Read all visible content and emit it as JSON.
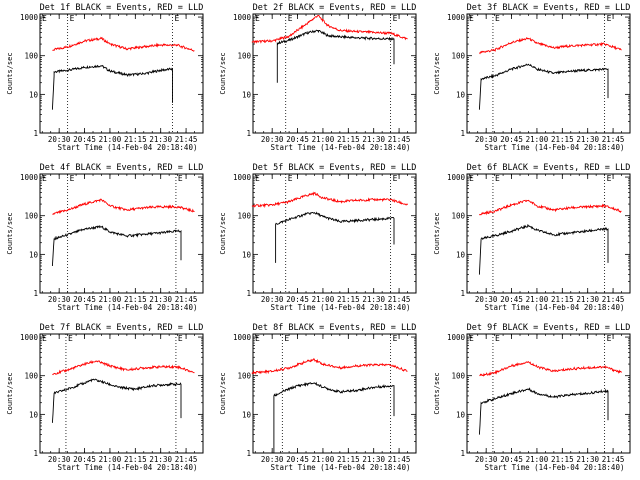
{
  "colors": {
    "events": "#000000",
    "lld": "#ff0000",
    "frame": "#000000",
    "background": "#ffffff"
  },
  "chart_data": [
    {
      "type": "line",
      "title": "Det 1f BLACK = Events, RED = LLD",
      "ylabel": "Counts/sec",
      "xlabel": "Start Time (14-Feb-04 20:18:40)",
      "yscale": "log",
      "ylim": [
        1,
        1200
      ],
      "yticks": [
        "1",
        "10",
        "100",
        "1000"
      ],
      "xticks": [
        "20:30",
        "20:45",
        "21:00",
        "21:15",
        "21:30",
        "21:45"
      ],
      "xlim": [
        "20:18:40",
        "21:55:00"
      ],
      "markers": {
        "start": "20:35",
        "end": "21:37",
        "label": "E"
      },
      "series": [
        {
          "name": "Events",
          "color": "#000000",
          "x": [
            "20:26",
            "20:27",
            "20:27",
            "20:35",
            "20:45",
            "20:55",
            "21:00",
            "21:10",
            "21:20",
            "21:30",
            "21:36",
            "21:37",
            "21:37"
          ],
          "y": [
            4,
            30,
            38,
            42,
            50,
            55,
            40,
            32,
            34,
            42,
            45,
            45,
            6
          ]
        },
        {
          "name": "LLD",
          "color": "#ff0000",
          "x": [
            "20:26",
            "20:35",
            "20:45",
            "20:55",
            "21:00",
            "21:10",
            "21:20",
            "21:30",
            "21:40",
            "21:50"
          ],
          "y": [
            140,
            170,
            240,
            280,
            200,
            150,
            170,
            190,
            185,
            135
          ]
        }
      ]
    },
    {
      "type": "line",
      "title": "Det 2f BLACK = Events, RED = LLD",
      "ylabel": "Counts/sec",
      "xlabel": "Start Time (14-Feb-04 20:18:40)",
      "yscale": "log",
      "ylim": [
        1,
        1200
      ],
      "yticks": [
        "1",
        "10",
        "100",
        "1000"
      ],
      "xticks": [
        "20:30",
        "20:45",
        "21:00",
        "21:15",
        "21:30",
        "21:45"
      ],
      "xlim": [
        "20:18:40",
        "21:55:00"
      ],
      "markers": {
        "start": "20:38",
        "end": "21:40",
        "label": "E"
      },
      "series": [
        {
          "name": "Events",
          "color": "#000000",
          "x": [
            "20:33",
            "20:33",
            "20:40",
            "20:50",
            "20:57",
            "21:03",
            "21:10",
            "21:20",
            "21:30",
            "21:40",
            "21:42",
            "21:42"
          ],
          "y": [
            20,
            210,
            250,
            380,
            450,
            330,
            310,
            290,
            280,
            270,
            270,
            60
          ]
        },
        {
          "name": "LLD",
          "color": "#ff0000",
          "x": [
            "20:18",
            "20:30",
            "20:40",
            "20:50",
            "20:57",
            "21:03",
            "21:10",
            "21:20",
            "21:30",
            "21:40",
            "21:50"
          ],
          "y": [
            230,
            240,
            320,
            650,
            1100,
            600,
            450,
            420,
            400,
            380,
            270
          ]
        }
      ]
    },
    {
      "type": "line",
      "title": "Det 3f BLACK = Events, RED = LLD",
      "ylabel": "Counts/sec",
      "xlabel": "Start Time (14-Feb-04 20:18:40)",
      "yscale": "log",
      "ylim": [
        1,
        1200
      ],
      "yticks": [
        "1",
        "10",
        "100",
        "1000"
      ],
      "xticks": [
        "20:30",
        "20:45",
        "21:00",
        "21:15",
        "21:30",
        "21:45"
      ],
      "xlim": [
        "20:18:40",
        "21:55:00"
      ],
      "markers": {
        "start": "20:34",
        "end": "21:40",
        "label": "E"
      },
      "series": [
        {
          "name": "Events",
          "color": "#000000",
          "x": [
            "20:26",
            "20:27",
            "20:35",
            "20:45",
            "20:55",
            "21:00",
            "21:10",
            "21:20",
            "21:30",
            "21:40",
            "21:42",
            "21:42"
          ],
          "y": [
            4,
            25,
            30,
            45,
            60,
            45,
            35,
            40,
            42,
            45,
            45,
            8
          ]
        },
        {
          "name": "LLD",
          "color": "#ff0000",
          "x": [
            "20:26",
            "20:35",
            "20:45",
            "20:55",
            "21:00",
            "21:10",
            "21:20",
            "21:30",
            "21:40",
            "21:50"
          ],
          "y": [
            120,
            140,
            220,
            280,
            210,
            160,
            180,
            190,
            200,
            140
          ]
        }
      ]
    },
    {
      "type": "line",
      "title": "Det 4f BLACK = Events, RED = LLD",
      "ylabel": "Counts/sec",
      "xlabel": "Start Time (14-Feb-04 20:18:40)",
      "yscale": "log",
      "ylim": [
        1,
        1200
      ],
      "yticks": [
        "1",
        "10",
        "100",
        "1000"
      ],
      "xticks": [
        "20:30",
        "20:45",
        "21:00",
        "21:15",
        "21:30",
        "21:45"
      ],
      "xlim": [
        "20:18:40",
        "21:55:00"
      ],
      "markers": {
        "start": "20:35",
        "end": "21:39",
        "label": "E"
      },
      "series": [
        {
          "name": "Events",
          "color": "#000000",
          "x": [
            "20:26",
            "20:27",
            "20:35",
            "20:45",
            "20:55",
            "21:00",
            "21:10",
            "21:20",
            "21:30",
            "21:40",
            "21:42",
            "21:42"
          ],
          "y": [
            5,
            25,
            32,
            45,
            52,
            38,
            30,
            33,
            36,
            40,
            40,
            7
          ]
        },
        {
          "name": "LLD",
          "color": "#ff0000",
          "x": [
            "20:26",
            "20:35",
            "20:45",
            "20:55",
            "21:00",
            "21:10",
            "21:20",
            "21:30",
            "21:40",
            "21:50"
          ],
          "y": [
            110,
            140,
            200,
            260,
            180,
            140,
            160,
            170,
            170,
            130
          ]
        }
      ]
    },
    {
      "type": "line",
      "title": "Det 5f BLACK = Events, RED = LLD",
      "ylabel": "Counts/sec",
      "xlabel": "Start Time (14-Feb-04 20:18:40)",
      "yscale": "log",
      "ylim": [
        1,
        1200
      ],
      "yticks": [
        "1",
        "10",
        "100",
        "1000"
      ],
      "xticks": [
        "20:30",
        "20:45",
        "21:00",
        "21:15",
        "21:30",
        "21:45"
      ],
      "xlim": [
        "20:18:40",
        "21:55:00"
      ],
      "markers": {
        "start": "20:38",
        "end": "21:40",
        "label": "E"
      },
      "series": [
        {
          "name": "Events",
          "color": "#000000",
          "x": [
            "20:32",
            "20:32",
            "20:40",
            "20:50",
            "20:55",
            "21:00",
            "21:10",
            "21:20",
            "21:30",
            "21:40",
            "21:42",
            "21:42"
          ],
          "y": [
            6,
            60,
            80,
            110,
            120,
            95,
            70,
            75,
            80,
            85,
            85,
            18
          ]
        },
        {
          "name": "LLD",
          "color": "#ff0000",
          "x": [
            "20:18",
            "20:30",
            "20:40",
            "20:50",
            "20:55",
            "21:00",
            "21:10",
            "21:20",
            "21:30",
            "21:40",
            "21:50"
          ],
          "y": [
            180,
            190,
            230,
            330,
            380,
            290,
            230,
            250,
            260,
            260,
            190
          ]
        }
      ]
    },
    {
      "type": "line",
      "title": "Det 6f BLACK = Events, RED = LLD",
      "ylabel": "Counts/sec",
      "xlabel": "Start Time (14-Feb-04 20:18:40)",
      "yscale": "log",
      "ylim": [
        1,
        1200
      ],
      "yticks": [
        "1",
        "10",
        "100",
        "1000"
      ],
      "xticks": [
        "20:30",
        "20:45",
        "21:00",
        "21:15",
        "21:30",
        "21:45"
      ],
      "xlim": [
        "20:18:40",
        "21:55:00"
      ],
      "markers": {
        "start": "20:34",
        "end": "21:40",
        "label": "E"
      },
      "series": [
        {
          "name": "Events",
          "color": "#000000",
          "x": [
            "20:26",
            "20:27",
            "20:35",
            "20:45",
            "20:55",
            "21:00",
            "21:10",
            "21:20",
            "21:30",
            "21:40",
            "21:42",
            "21:42"
          ],
          "y": [
            3,
            25,
            30,
            40,
            55,
            42,
            32,
            36,
            40,
            45,
            45,
            6
          ]
        },
        {
          "name": "LLD",
          "color": "#ff0000",
          "x": [
            "20:26",
            "20:35",
            "20:45",
            "20:55",
            "21:00",
            "21:10",
            "21:20",
            "21:30",
            "21:40",
            "21:50"
          ],
          "y": [
            110,
            130,
            190,
            250,
            180,
            140,
            160,
            170,
            180,
            130
          ]
        }
      ]
    },
    {
      "type": "line",
      "title": "Det 7f BLACK = Events, RED = LLD",
      "ylabel": "Counts/sec",
      "xlabel": "Start Time (14-Feb-04 20:18:40)",
      "yscale": "log",
      "ylim": [
        1,
        1200
      ],
      "yticks": [
        "1",
        "10",
        "100",
        "1000"
      ],
      "xticks": [
        "20:30",
        "20:45",
        "21:00",
        "21:15",
        "21:30",
        "21:45"
      ],
      "xlim": [
        "20:18:40",
        "21:55:00"
      ],
      "markers": {
        "start": "20:34",
        "end": "21:39",
        "label": "E"
      },
      "series": [
        {
          "name": "Events",
          "color": "#000000",
          "x": [
            "20:26",
            "20:27",
            "20:35",
            "20:45",
            "20:50",
            "20:55",
            "21:05",
            "21:15",
            "21:25",
            "21:35",
            "21:40",
            "21:42",
            "21:42"
          ],
          "y": [
            6,
            35,
            45,
            65,
            80,
            70,
            50,
            45,
            55,
            60,
            60,
            60,
            8
          ]
        },
        {
          "name": "LLD",
          "color": "#ff0000",
          "x": [
            "20:26",
            "20:35",
            "20:45",
            "20:52",
            "21:00",
            "21:10",
            "21:20",
            "21:30",
            "21:40",
            "21:50"
          ],
          "y": [
            110,
            140,
            200,
            240,
            180,
            140,
            160,
            170,
            170,
            120
          ]
        }
      ]
    },
    {
      "type": "line",
      "title": "Det 8f BLACK = Events, RED = LLD",
      "ylabel": "Counts/sec",
      "xlabel": "Start Time (14-Feb-04 20:18:40)",
      "yscale": "log",
      "ylim": [
        1,
        1200
      ],
      "yticks": [
        "1",
        "10",
        "100",
        "1000"
      ],
      "xticks": [
        "20:30",
        "20:45",
        "21:00",
        "21:15",
        "21:30",
        "21:45"
      ],
      "xlim": [
        "20:18:40",
        "21:55:00"
      ],
      "markers": {
        "start": "20:36",
        "end": "21:40",
        "label": "E"
      },
      "series": [
        {
          "name": "Events",
          "color": "#000000",
          "x": [
            "20:31",
            "20:31",
            "20:37",
            "20:45",
            "20:55",
            "21:00",
            "21:10",
            "21:20",
            "21:30",
            "21:40",
            "21:42",
            "21:42"
          ],
          "y": [
            1,
            30,
            40,
            55,
            65,
            50,
            38,
            42,
            50,
            55,
            55,
            9
          ]
        },
        {
          "name": "LLD",
          "color": "#ff0000",
          "x": [
            "20:18",
            "20:30",
            "20:40",
            "20:50",
            "20:55",
            "21:00",
            "21:10",
            "21:20",
            "21:30",
            "21:40",
            "21:50"
          ],
          "y": [
            120,
            130,
            160,
            230,
            260,
            200,
            160,
            180,
            190,
            190,
            130
          ]
        }
      ]
    },
    {
      "type": "line",
      "title": "Det 9f BLACK = Events, RED = LLD",
      "ylabel": "Counts/sec",
      "xlabel": "Start Time (14-Feb-04 20:18:40)",
      "yscale": "log",
      "ylim": [
        1,
        1200
      ],
      "yticks": [
        "1",
        "10",
        "100",
        "1000"
      ],
      "xticks": [
        "20:30",
        "20:45",
        "21:00",
        "21:15",
        "21:30",
        "21:45"
      ],
      "xlim": [
        "20:18:40",
        "21:55:00"
      ],
      "markers": {
        "start": "20:34",
        "end": "21:40",
        "label": "E"
      },
      "series": [
        {
          "name": "Events",
          "color": "#000000",
          "x": [
            "20:26",
            "20:27",
            "20:35",
            "20:45",
            "20:55",
            "21:00",
            "21:10",
            "21:20",
            "21:30",
            "21:40",
            "21:42",
            "21:42"
          ],
          "y": [
            3,
            20,
            25,
            35,
            45,
            35,
            28,
            32,
            35,
            40,
            40,
            7
          ]
        },
        {
          "name": "LLD",
          "color": "#ff0000",
          "x": [
            "20:26",
            "20:35",
            "20:45",
            "20:55",
            "21:00",
            "21:10",
            "21:20",
            "21:30",
            "21:40",
            "21:50"
          ],
          "y": [
            100,
            120,
            180,
            230,
            170,
            130,
            150,
            160,
            170,
            120
          ]
        }
      ]
    }
  ]
}
